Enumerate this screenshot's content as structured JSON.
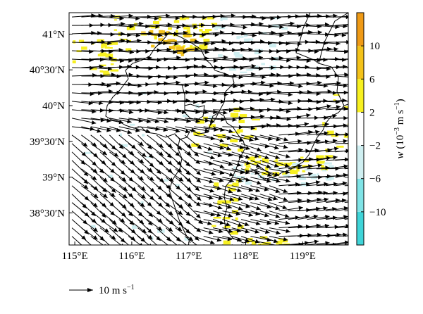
{
  "chart_data": {
    "type": "vector-map",
    "title": "",
    "lon_range": [
      114.9,
      119.8
    ],
    "lat_range": [
      38.05,
      41.3
    ],
    "x_ticks": [
      {
        "value": 115,
        "label": "115°E"
      },
      {
        "value": 116,
        "label": "116°E"
      },
      {
        "value": 117,
        "label": "117°E"
      },
      {
        "value": 118,
        "label": "118°E"
      },
      {
        "value": 119,
        "label": "119°E"
      }
    ],
    "y_ticks": [
      {
        "value": 41.0,
        "label": "41°N"
      },
      {
        "value": 40.5,
        "label": "40°30′N"
      },
      {
        "value": 40.0,
        "label": "40°N"
      },
      {
        "value": 39.5,
        "label": "39°30′N"
      },
      {
        "value": 39.0,
        "label": "39°N"
      },
      {
        "value": 38.5,
        "label": "38°30′N"
      }
    ],
    "wind_field": {
      "description_key": "northwesterly-to-westerly flow",
      "regimes": [
        {
          "region": "north",
          "lat_min": 40.0,
          "direction_deg_to": 0,
          "speed_ms": 10
        },
        {
          "region": "southwest",
          "lat_max": 39.5,
          "lon_max": 117.0,
          "direction_deg_to": -40,
          "speed_ms": 9
        },
        {
          "region": "south-central",
          "lat_max": 39.5,
          "lon_min": 117.0,
          "lon_max": 118.5,
          "direction_deg_to": -15,
          "speed_ms": 9
        },
        {
          "region": "east",
          "lon_min": 118.5,
          "direction_deg_to": 5,
          "speed_ms": 10
        }
      ],
      "reference_vector": {
        "label": "10 m s",
        "exponent": "−1",
        "speed_ms": 10
      }
    },
    "vertical_velocity": {
      "colorbar": {
        "label_var": "w",
        "label_units_prefix": "(10",
        "label_units_exp": "−3",
        "label_units_suffix": " m s",
        "label_units_exp2": "−1",
        "label_close": ")",
        "levels": [
          -14,
          -10,
          -6,
          -2,
          2,
          6,
          10,
          14
        ],
        "tick_labels": [
          {
            "value": 10,
            "label": "10"
          },
          {
            "value": 6,
            "label": "6"
          },
          {
            "value": 2,
            "label": "2"
          },
          {
            "value": -2,
            "label": "−2"
          },
          {
            "value": -6,
            "label": "−6"
          },
          {
            "value": -10,
            "label": "−10"
          }
        ],
        "colors": [
          "#3fd4d8",
          "#7fe3e6",
          "#cfeff1",
          "#ffffff",
          "#f7f020",
          "#f3c21a",
          "#ef9a16"
        ]
      }
    }
  }
}
